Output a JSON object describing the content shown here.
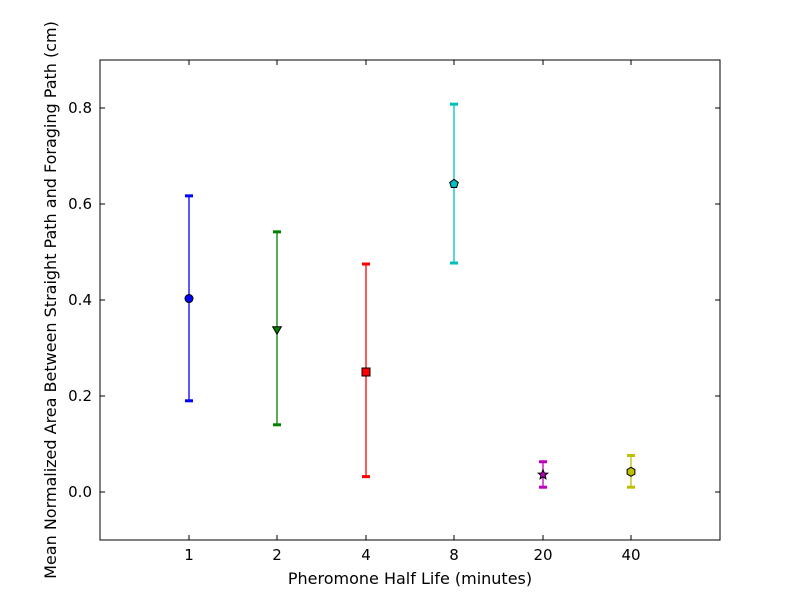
{
  "chart_data": {
    "type": "errorbar",
    "xlabel": "Pheromone Half Life (minutes)",
    "ylabel": "Mean Normalized Area Between Straight Path and Foraging Path (cm)",
    "categories": [
      "1",
      "2",
      "4",
      "8",
      "20",
      "40"
    ],
    "ylim": [
      -0.1,
      0.9
    ],
    "yticks": [
      0.0,
      0.2,
      0.4,
      0.6,
      0.8
    ],
    "ytick_labels": [
      "0.0",
      "0.2",
      "0.4",
      "0.6",
      "0.8"
    ],
    "grid": false,
    "points": [
      {
        "x": "1",
        "mean": 0.403,
        "lower": 0.19,
        "upper": 0.617,
        "color": "#0000ff",
        "marker": "circle"
      },
      {
        "x": "2",
        "mean": 0.339,
        "lower": 0.14,
        "upper": 0.542,
        "color": "#008000",
        "marker": "triangle-down"
      },
      {
        "x": "4",
        "mean": 0.25,
        "lower": 0.032,
        "upper": 0.475,
        "color": "#ff0000",
        "marker": "square"
      },
      {
        "x": "8",
        "mean": 0.642,
        "lower": 0.477,
        "upper": 0.808,
        "color": "#00bfbf",
        "marker": "pentagon"
      },
      {
        "x": "20",
        "mean": 0.036,
        "lower": 0.01,
        "upper": 0.063,
        "color": "#bf00bf",
        "marker": "star"
      },
      {
        "x": "40",
        "mean": 0.042,
        "lower": 0.01,
        "upper": 0.076,
        "color": "#bfbf00",
        "marker": "hexagon"
      }
    ]
  }
}
